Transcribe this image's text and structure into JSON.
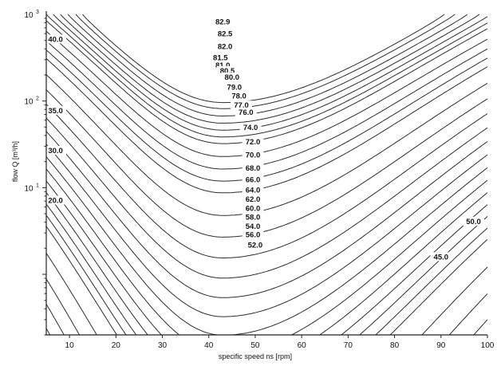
{
  "chart_data": {
    "type": "line",
    "subtype": "contour",
    "title": "",
    "xlabel": "specific speed ns [rpm]",
    "ylabel": "flow Q [m³/h]",
    "xlim": [
      5,
      100
    ],
    "ylim": [
      0.2,
      1000
    ],
    "yscale": "log",
    "x_ticks": [
      10,
      20,
      30,
      40,
      50,
      60,
      70,
      80,
      90,
      100
    ],
    "y_ticks": [
      {
        "value": 10,
        "base": "10",
        "exp": "1"
      },
      {
        "value": 100,
        "base": "10",
        "exp": "2"
      },
      {
        "value": 1000,
        "base": "10",
        "exp": "3"
      }
    ],
    "grid": false,
    "legend": "none",
    "optimum_ns": 43,
    "contour_levels": [
      20.0,
      30.0,
      35.0,
      40.0,
      45.0,
      50.0,
      52.0,
      54.0,
      56.0,
      58.0,
      60.0,
      62.0,
      64.0,
      66.0,
      68.0,
      70.0,
      72.0,
      74.0,
      76.0,
      77.0,
      78.0,
      79.0,
      80.0,
      80.5,
      81.0,
      81.5,
      82.0,
      82.5,
      82.9
    ],
    "series": [
      {
        "label": "82.9",
        "level": 82.9,
        "label_x": 43,
        "label_y": 830
      },
      {
        "label": "82.5",
        "level": 82.5,
        "label_x": 43.5,
        "label_y": 600
      },
      {
        "label": "82.0",
        "level": 82.0,
        "label_x": 43.5,
        "label_y": 430
      },
      {
        "label": "81.5",
        "level": 81.5,
        "label_x": 42.5,
        "label_y": 320
      },
      {
        "label": "81.0",
        "level": 81.0,
        "label_x": 43,
        "label_y": 260
      },
      {
        "label": "80.5",
        "level": 80.5,
        "label_x": 44,
        "label_y": 225
      },
      {
        "label": "80.0",
        "level": 80.0,
        "label_x": 45,
        "label_y": 190
      },
      {
        "label": "79.0",
        "level": 79.0,
        "label_x": 45.5,
        "label_y": 145
      },
      {
        "label": "78.0",
        "level": 78.0,
        "label_x": 46.5,
        "label_y": 115
      },
      {
        "label": "77.0",
        "level": 77.0,
        "label_x": 47,
        "label_y": 90
      },
      {
        "label": "76.0",
        "level": 76.0,
        "label_x": 48,
        "label_y": 75
      },
      {
        "label": "74.0",
        "level": 74.0,
        "label_x": 49,
        "label_y": 50
      },
      {
        "label": "72.0",
        "level": 72.0,
        "label_x": 49.5,
        "label_y": 34
      },
      {
        "label": "70.0",
        "level": 70.0,
        "label_x": 49.5,
        "label_y": 24
      },
      {
        "label": "68.0",
        "level": 68.0,
        "label_x": 49.5,
        "label_y": 17
      },
      {
        "label": "66.0",
        "level": 66.0,
        "label_x": 49.5,
        "label_y": 12.5
      },
      {
        "label": "64.0",
        "level": 64.0,
        "label_x": 49.5,
        "label_y": 9.5
      },
      {
        "label": "62.0",
        "level": 62.0,
        "label_x": 49.5,
        "label_y": 7.4
      },
      {
        "label": "60.0",
        "level": 60.0,
        "label_x": 49.5,
        "label_y": 5.8
      },
      {
        "label": "58.0",
        "level": 58.0,
        "label_x": 49.5,
        "label_y": 4.6
      },
      {
        "label": "54.0",
        "level": 54.0,
        "label_x": 49.5,
        "label_y": 3.6
      },
      {
        "label": "56.0",
        "level": 56.0,
        "label_x": 49.5,
        "label_y": 2.9
      },
      {
        "label": "52.0",
        "level": 52.0,
        "label_x": 50,
        "label_y": 2.2
      },
      {
        "label": "50.0",
        "level": 50.0,
        "label_x": 97,
        "label_y": 4.1
      },
      {
        "label": "45.0",
        "level": 45.0,
        "label_x": 90,
        "label_y": 1.6
      },
      {
        "label": "40.0",
        "level": 40.0,
        "label_x": 7,
        "label_y": 520
      },
      {
        "label": "35.0",
        "level": 35.0,
        "label_x": 7,
        "label_y": 78
      },
      {
        "label": "30.0",
        "level": 30.0,
        "label_x": 7,
        "label_y": 27
      },
      {
        "label": "20.0",
        "level": 20.0,
        "label_x": 7,
        "label_y": 7.2
      }
    ]
  }
}
